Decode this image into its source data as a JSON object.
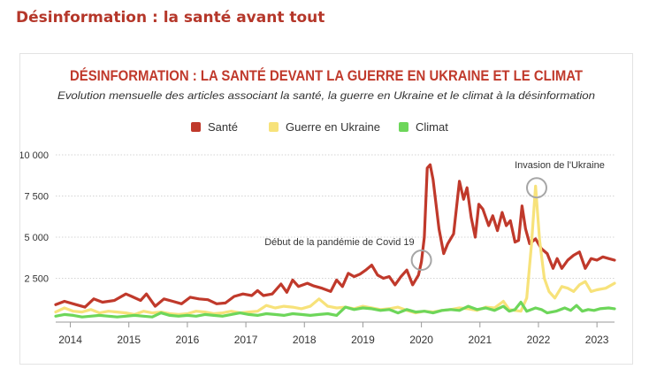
{
  "page": {
    "heading": "Désinformation : la santé avant tout"
  },
  "chart_data": {
    "type": "line",
    "title": "DÉSINFORMATION : LA SANTÉ DEVANT LA GUERRE EN UKRAINE ET LE CLIMAT",
    "subtitle": "Evolution mensuelle des articles associant la santé, la guerre en Ukraine et le climat à la désinformation",
    "xlabel": "",
    "ylabel": "",
    "ylim": [
      0,
      10000
    ],
    "yticks": [
      {
        "value": 2500,
        "label": "2 500"
      },
      {
        "value": 5000,
        "label": "5 000"
      },
      {
        "value": 7500,
        "label": "7 500"
      },
      {
        "value": 10000,
        "label": "10 000"
      }
    ],
    "xlim": [
      2013.75,
      2023.3
    ],
    "xticks": [
      {
        "value": 2014,
        "label": "2014"
      },
      {
        "value": 2015,
        "label": "2015"
      },
      {
        "value": 2016,
        "label": "2016"
      },
      {
        "value": 2017,
        "label": "2017"
      },
      {
        "value": 2018,
        "label": "2018"
      },
      {
        "value": 2019,
        "label": "2019"
      },
      {
        "value": 2020,
        "label": "2020"
      },
      {
        "value": 2021,
        "label": "2021"
      },
      {
        "value": 2022,
        "label": "2022"
      },
      {
        "value": 2023,
        "label": "2023"
      }
    ],
    "grid": true,
    "legend_position": "top-center",
    "series": [
      {
        "name": "Santé",
        "color": "#c0392b",
        "points": [
          [
            2013.75,
            900
          ],
          [
            2013.9,
            1100
          ],
          [
            2014.1,
            900
          ],
          [
            2014.25,
            750
          ],
          [
            2014.4,
            1250
          ],
          [
            2014.55,
            1050
          ],
          [
            2014.75,
            1150
          ],
          [
            2014.95,
            1550
          ],
          [
            2015.05,
            1400
          ],
          [
            2015.2,
            1150
          ],
          [
            2015.3,
            1550
          ],
          [
            2015.45,
            800
          ],
          [
            2015.6,
            1250
          ],
          [
            2015.75,
            1100
          ],
          [
            2015.9,
            950
          ],
          [
            2016.05,
            1350
          ],
          [
            2016.2,
            1250
          ],
          [
            2016.35,
            1200
          ],
          [
            2016.5,
            950
          ],
          [
            2016.65,
            1000
          ],
          [
            2016.8,
            1400
          ],
          [
            2016.95,
            1550
          ],
          [
            2017.1,
            1450
          ],
          [
            2017.2,
            1750
          ],
          [
            2017.3,
            1450
          ],
          [
            2017.45,
            1550
          ],
          [
            2017.6,
            2150
          ],
          [
            2017.7,
            1650
          ],
          [
            2017.8,
            2400
          ],
          [
            2017.9,
            2000
          ],
          [
            2018.05,
            2200
          ],
          [
            2018.15,
            2050
          ],
          [
            2018.3,
            1900
          ],
          [
            2018.45,
            1700
          ],
          [
            2018.55,
            2400
          ],
          [
            2018.65,
            2000
          ],
          [
            2018.75,
            2800
          ],
          [
            2018.85,
            2600
          ],
          [
            2018.95,
            2750
          ],
          [
            2019.05,
            3000
          ],
          [
            2019.15,
            3300
          ],
          [
            2019.25,
            2700
          ],
          [
            2019.35,
            2500
          ],
          [
            2019.45,
            2600
          ],
          [
            2019.55,
            2100
          ],
          [
            2019.65,
            2600
          ],
          [
            2019.75,
            3000
          ],
          [
            2019.85,
            2100
          ],
          [
            2019.95,
            2700
          ],
          [
            2020.0,
            3500
          ],
          [
            2020.05,
            5000
          ],
          [
            2020.1,
            9200
          ],
          [
            2020.15,
            9400
          ],
          [
            2020.2,
            8500
          ],
          [
            2020.3,
            5500
          ],
          [
            2020.38,
            4000
          ],
          [
            2020.45,
            4600
          ],
          [
            2020.55,
            5200
          ],
          [
            2020.65,
            8400
          ],
          [
            2020.72,
            7300
          ],
          [
            2020.78,
            8000
          ],
          [
            2020.85,
            6200
          ],
          [
            2020.92,
            5000
          ],
          [
            2020.98,
            7000
          ],
          [
            2021.05,
            6700
          ],
          [
            2021.15,
            5700
          ],
          [
            2021.22,
            6300
          ],
          [
            2021.3,
            5400
          ],
          [
            2021.38,
            6500
          ],
          [
            2021.45,
            5700
          ],
          [
            2021.52,
            6000
          ],
          [
            2021.6,
            4700
          ],
          [
            2021.66,
            4800
          ],
          [
            2021.72,
            6900
          ],
          [
            2021.78,
            5500
          ],
          [
            2021.85,
            4600
          ],
          [
            2021.95,
            4900
          ],
          [
            2022.05,
            4300
          ],
          [
            2022.15,
            4000
          ],
          [
            2022.25,
            3100
          ],
          [
            2022.32,
            3700
          ],
          [
            2022.4,
            3100
          ],
          [
            2022.5,
            3600
          ],
          [
            2022.6,
            3900
          ],
          [
            2022.7,
            4100
          ],
          [
            2022.8,
            3100
          ],
          [
            2022.9,
            3700
          ],
          [
            2023.0,
            3600
          ],
          [
            2023.1,
            3800
          ],
          [
            2023.2,
            3700
          ],
          [
            2023.3,
            3600
          ]
        ]
      },
      {
        "name": "Guerre en Ukraine",
        "color": "#f7e27a",
        "points": [
          [
            2013.75,
            450
          ],
          [
            2013.9,
            700
          ],
          [
            2014.05,
            500
          ],
          [
            2014.2,
            450
          ],
          [
            2014.35,
            600
          ],
          [
            2014.5,
            400
          ],
          [
            2014.65,
            500
          ],
          [
            2014.8,
            450
          ],
          [
            2014.95,
            400
          ],
          [
            2015.1,
            300
          ],
          [
            2015.25,
            500
          ],
          [
            2015.4,
            400
          ],
          [
            2015.55,
            450
          ],
          [
            2015.7,
            350
          ],
          [
            2015.85,
            300
          ],
          [
            2016.0,
            350
          ],
          [
            2016.15,
            500
          ],
          [
            2016.3,
            450
          ],
          [
            2016.45,
            350
          ],
          [
            2016.6,
            400
          ],
          [
            2016.75,
            500
          ],
          [
            2016.9,
            400
          ],
          [
            2017.05,
            450
          ],
          [
            2017.2,
            500
          ],
          [
            2017.35,
            850
          ],
          [
            2017.5,
            700
          ],
          [
            2017.65,
            800
          ],
          [
            2017.8,
            750
          ],
          [
            2017.95,
            650
          ],
          [
            2018.1,
            800
          ],
          [
            2018.25,
            1250
          ],
          [
            2018.4,
            800
          ],
          [
            2018.55,
            700
          ],
          [
            2018.7,
            750
          ],
          [
            2018.85,
            650
          ],
          [
            2019.0,
            800
          ],
          [
            2019.15,
            700
          ],
          [
            2019.3,
            600
          ],
          [
            2019.45,
            650
          ],
          [
            2019.6,
            750
          ],
          [
            2019.75,
            550
          ],
          [
            2019.9,
            400
          ],
          [
            2020.05,
            500
          ],
          [
            2020.2,
            450
          ],
          [
            2020.35,
            550
          ],
          [
            2020.5,
            600
          ],
          [
            2020.65,
            700
          ],
          [
            2020.8,
            650
          ],
          [
            2020.95,
            550
          ],
          [
            2021.1,
            750
          ],
          [
            2021.25,
            700
          ],
          [
            2021.4,
            1100
          ],
          [
            2021.5,
            600
          ],
          [
            2021.6,
            550
          ],
          [
            2021.7,
            500
          ],
          [
            2021.8,
            1300
          ],
          [
            2021.88,
            4500
          ],
          [
            2021.95,
            8100
          ],
          [
            2022.02,
            4800
          ],
          [
            2022.1,
            2500
          ],
          [
            2022.18,
            1700
          ],
          [
            2022.28,
            1300
          ],
          [
            2022.4,
            2000
          ],
          [
            2022.5,
            1900
          ],
          [
            2022.6,
            1700
          ],
          [
            2022.7,
            2100
          ],
          [
            2022.8,
            2300
          ],
          [
            2022.9,
            1700
          ],
          [
            2023.0,
            1800
          ],
          [
            2023.15,
            1900
          ],
          [
            2023.3,
            2200
          ]
        ]
      },
      {
        "name": "Climat",
        "color": "#6dd65a",
        "points": [
          [
            2013.75,
            200
          ],
          [
            2013.9,
            300
          ],
          [
            2014.05,
            250
          ],
          [
            2014.2,
            150
          ],
          [
            2014.35,
            200
          ],
          [
            2014.5,
            250
          ],
          [
            2014.65,
            200
          ],
          [
            2014.8,
            150
          ],
          [
            2014.95,
            200
          ],
          [
            2015.1,
            250
          ],
          [
            2015.25,
            200
          ],
          [
            2015.4,
            150
          ],
          [
            2015.55,
            400
          ],
          [
            2015.7,
            250
          ],
          [
            2015.85,
            200
          ],
          [
            2016.0,
            250
          ],
          [
            2016.15,
            200
          ],
          [
            2016.3,
            300
          ],
          [
            2016.45,
            250
          ],
          [
            2016.6,
            200
          ],
          [
            2016.75,
            300
          ],
          [
            2016.9,
            400
          ],
          [
            2017.05,
            300
          ],
          [
            2017.2,
            250
          ],
          [
            2017.35,
            350
          ],
          [
            2017.5,
            300
          ],
          [
            2017.65,
            250
          ],
          [
            2017.8,
            350
          ],
          [
            2017.95,
            300
          ],
          [
            2018.1,
            250
          ],
          [
            2018.25,
            300
          ],
          [
            2018.4,
            350
          ],
          [
            2018.55,
            250
          ],
          [
            2018.7,
            750
          ],
          [
            2018.85,
            600
          ],
          [
            2019.0,
            700
          ],
          [
            2019.15,
            650
          ],
          [
            2019.3,
            550
          ],
          [
            2019.45,
            600
          ],
          [
            2019.6,
            400
          ],
          [
            2019.75,
            600
          ],
          [
            2019.9,
            450
          ],
          [
            2020.05,
            500
          ],
          [
            2020.2,
            400
          ],
          [
            2020.35,
            550
          ],
          [
            2020.5,
            600
          ],
          [
            2020.65,
            550
          ],
          [
            2020.8,
            800
          ],
          [
            2020.95,
            600
          ],
          [
            2021.1,
            700
          ],
          [
            2021.25,
            550
          ],
          [
            2021.4,
            800
          ],
          [
            2021.5,
            500
          ],
          [
            2021.6,
            600
          ],
          [
            2021.7,
            1050
          ],
          [
            2021.8,
            500
          ],
          [
            2021.95,
            700
          ],
          [
            2022.05,
            600
          ],
          [
            2022.15,
            400
          ],
          [
            2022.3,
            500
          ],
          [
            2022.45,
            700
          ],
          [
            2022.55,
            550
          ],
          [
            2022.65,
            850
          ],
          [
            2022.75,
            500
          ],
          [
            2022.85,
            600
          ],
          [
            2022.95,
            550
          ],
          [
            2023.05,
            650
          ],
          [
            2023.2,
            700
          ],
          [
            2023.3,
            650
          ]
        ]
      }
    ],
    "annotations": [
      {
        "label": "Début de la pandémie de Covid 19",
        "x": 2020.0,
        "y": 3600
      },
      {
        "label": "Invasion de l'Ukraine",
        "x": 2021.97,
        "y": 8000
      }
    ]
  }
}
